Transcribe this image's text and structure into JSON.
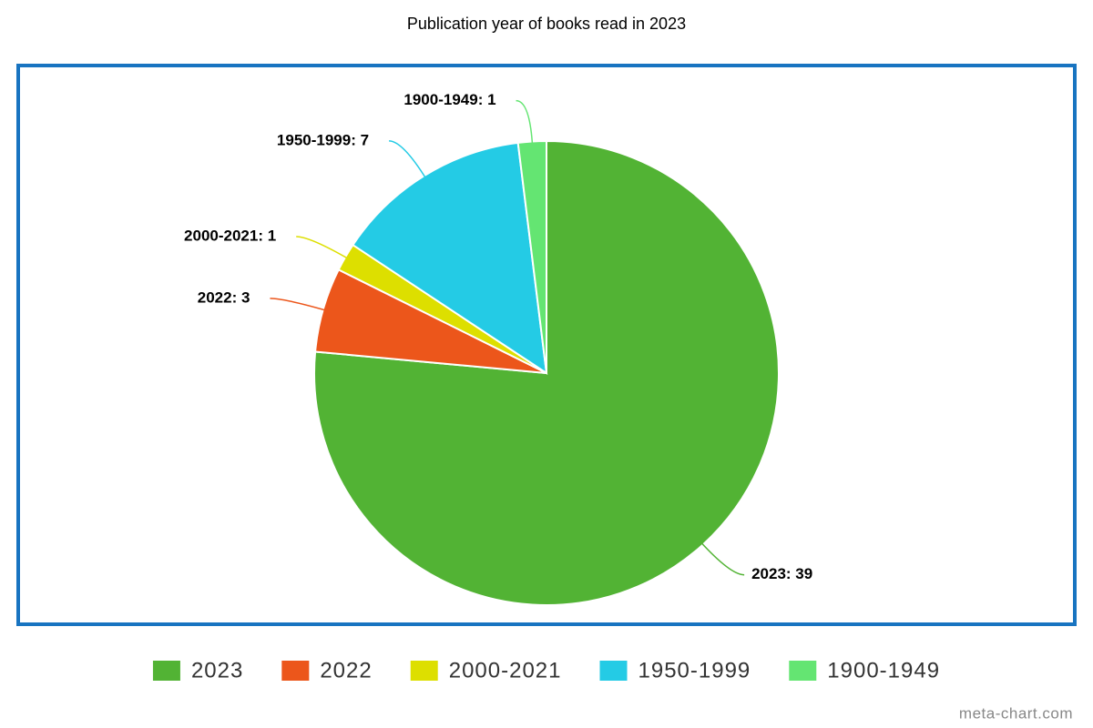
{
  "chart_data": {
    "type": "pie",
    "title": "Publication year of books read in 2023",
    "categories": [
      "2023",
      "2022",
      "2000-2021",
      "1950-1999",
      "1900-1949"
    ],
    "values": [
      39,
      3,
      1,
      7,
      1
    ],
    "value_labels": [
      "2023: 39",
      "2022: 3",
      "2000-2021: 1",
      "1950-1999: 7",
      "1900-1949: 1"
    ],
    "colors": [
      "#52b334",
      "#ec561b",
      "#dddf00",
      "#24cbe5",
      "#64e572"
    ],
    "legend": "bottom",
    "source_credit": "meta-chart.com"
  }
}
